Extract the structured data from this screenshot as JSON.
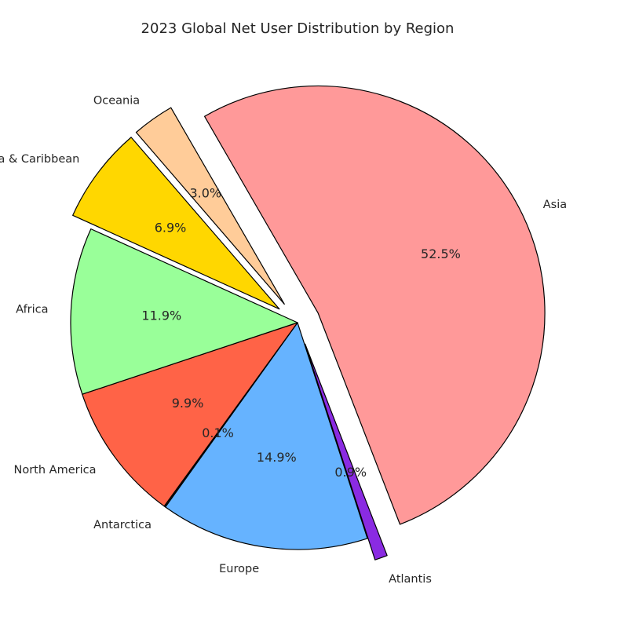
{
  "chart_data": {
    "type": "pie",
    "title": "2023 Global Net User Distribution by Region",
    "start_angle_deg": 120,
    "direction": "clockwise",
    "slices": [
      {
        "label": "Asia",
        "value": 52.5,
        "pct_text": "52.5%",
        "color": "#ff9999",
        "exploded": true
      },
      {
        "label": "Atlantis",
        "value": 0.9,
        "pct_text": "0.9%",
        "color": "#8a2be2",
        "exploded": true
      },
      {
        "label": "Europe",
        "value": 14.9,
        "pct_text": "14.9%",
        "color": "#66b3ff",
        "exploded": false
      },
      {
        "label": "Antarctica",
        "value": 0.1,
        "pct_text": "0.1%",
        "color": "#1a1a1a",
        "exploded": false
      },
      {
        "label": "North America",
        "value": 9.9,
        "pct_text": "9.9%",
        "color": "#ff6347",
        "exploded": false
      },
      {
        "label": "Africa",
        "value": 11.9,
        "pct_text": "11.9%",
        "color": "#99ff99",
        "exploded": false
      },
      {
        "label": "Latin America & Caribbean",
        "value": 6.9,
        "pct_text": "6.9%",
        "color": "#ffd700",
        "exploded": true
      },
      {
        "label": "Oceania",
        "value": 3.0,
        "pct_text": "3.0%",
        "color": "#ffcc99",
        "exploded": true
      }
    ]
  }
}
